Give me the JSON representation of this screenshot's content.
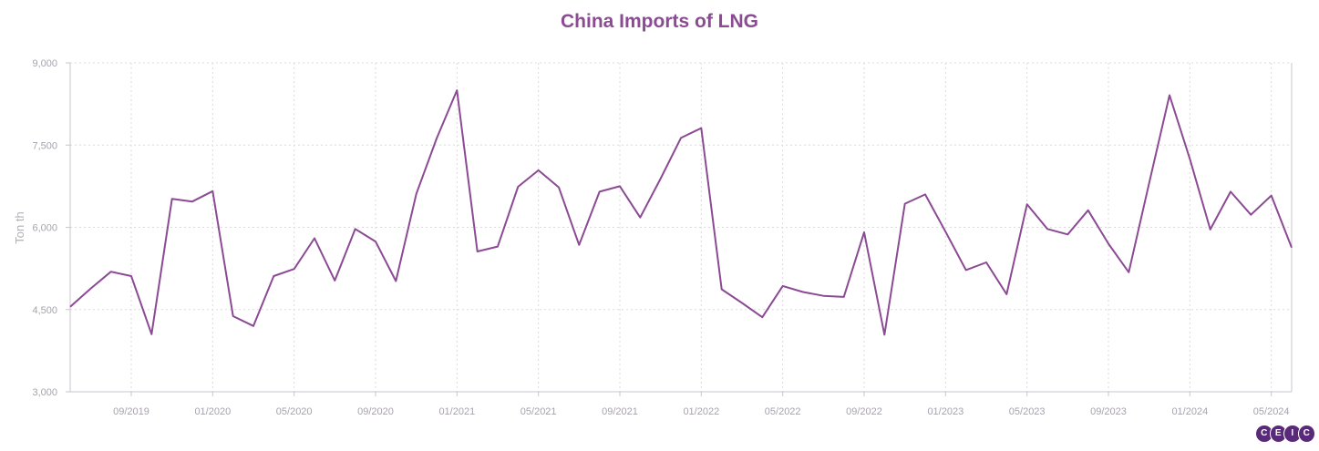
{
  "chart_data": {
    "type": "line",
    "title": "China Imports of LNG",
    "ylabel": "Ton th",
    "ylim": [
      3000,
      9000
    ],
    "yticks": [
      3000,
      4500,
      6000,
      7500,
      9000
    ],
    "ytick_labels": [
      "3,000",
      "4,500",
      "6,000",
      "7,500",
      "9,000"
    ],
    "xticks": [
      "2019-09",
      "2020-01",
      "2020-05",
      "2020-09",
      "2021-01",
      "2021-05",
      "2021-09",
      "2022-01",
      "2022-05",
      "2022-09",
      "2023-01",
      "2023-05",
      "2023-09",
      "2024-01",
      "2024-05"
    ],
    "xtick_labels": [
      "09/2019",
      "01/2020",
      "05/2020",
      "09/2020",
      "01/2021",
      "05/2021",
      "09/2021",
      "01/2022",
      "05/2022",
      "09/2022",
      "01/2023",
      "05/2023",
      "09/2023",
      "01/2024",
      "05/2024"
    ],
    "grid": true,
    "color": "#8b4a93",
    "series": [
      {
        "x": [
          "2019-06",
          "2019-07",
          "2019-08",
          "2019-09",
          "2019-10",
          "2019-11",
          "2019-12",
          "2020-01",
          "2020-02",
          "2020-03",
          "2020-04",
          "2020-05",
          "2020-06",
          "2020-07",
          "2020-08",
          "2020-09",
          "2020-10",
          "2020-11",
          "2020-12",
          "2021-01",
          "2021-02",
          "2021-03",
          "2021-04",
          "2021-05",
          "2021-06",
          "2021-07",
          "2021-08",
          "2021-09",
          "2021-10",
          "2021-11",
          "2021-12",
          "2022-01",
          "2022-02",
          "2022-03",
          "2022-04",
          "2022-05",
          "2022-06",
          "2022-07",
          "2022-08",
          "2022-09",
          "2022-10",
          "2022-11",
          "2022-12",
          "2023-01",
          "2023-02",
          "2023-03",
          "2023-04",
          "2023-05",
          "2023-06",
          "2023-07",
          "2023-08",
          "2023-09",
          "2023-10",
          "2023-11",
          "2023-12",
          "2024-01",
          "2024-02",
          "2024-03",
          "2024-04",
          "2024-05",
          "2024-06"
        ],
        "values": [
          4550,
          4880,
          5190,
          5110,
          4050,
          6520,
          6470,
          6660,
          4380,
          4200,
          5110,
          5240,
          5800,
          5030,
          5970,
          5740,
          5020,
          6610,
          7620,
          8500,
          5560,
          5650,
          6740,
          7040,
          6730,
          5680,
          6650,
          6750,
          6180,
          6890,
          7630,
          7810,
          4870,
          4620,
          4360,
          4930,
          4820,
          4750,
          4730,
          5910,
          4040,
          6430,
          6600,
          5920,
          5220,
          5360,
          4780,
          6420,
          5970,
          5870,
          6310,
          5700,
          5180,
          6810,
          8410,
          7250,
          5960,
          6650,
          6230,
          6580,
          5630
        ]
      }
    ]
  }
}
